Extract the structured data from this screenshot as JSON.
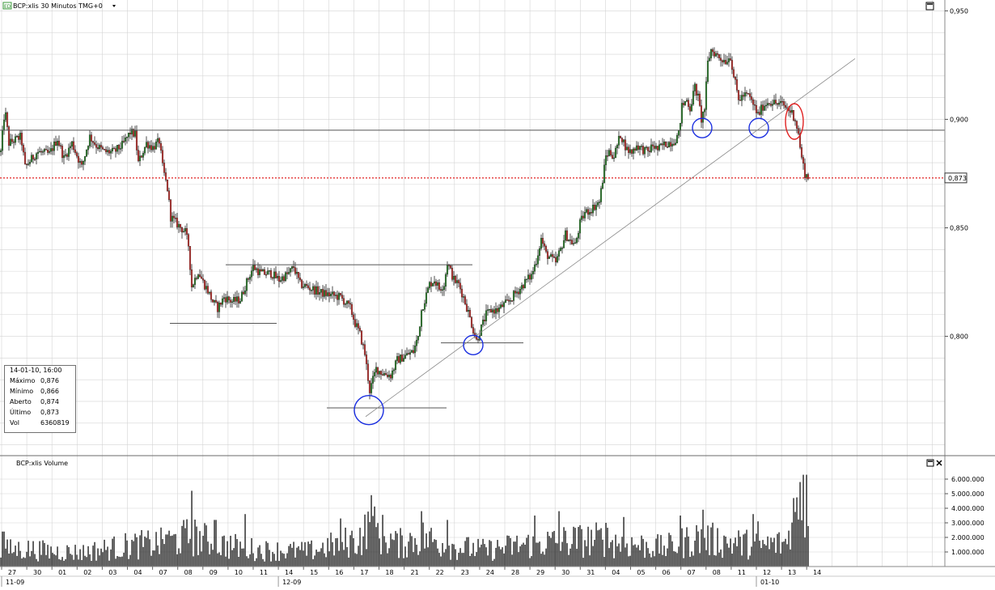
{
  "window": {
    "title": "BCP:xlis 30 Minutos TMG+0",
    "badge": "ED",
    "dropdown_icon": "caret-down-icon",
    "maximize_icon": "maximize-icon",
    "close_icon": "close-icon"
  },
  "info_box": {
    "header": "14-01-10, 16:00",
    "rows": [
      {
        "label": "Máximo",
        "value": "0,876"
      },
      {
        "label": "Mínimo",
        "value": "0,866"
      },
      {
        "label": "Aberto",
        "value": "0,874"
      },
      {
        "label": "Último",
        "value": "0,873"
      },
      {
        "label": "Vol",
        "value": "6360819"
      }
    ]
  },
  "colors": {
    "up": "#2a7f2a",
    "down": "#c0302c",
    "bar_outline": "#222222",
    "grid": "#d4d4d4",
    "last_price": "#e02020",
    "circle_blue": "#1a2ee0",
    "circle_red": "#e02020",
    "annotation": "#555555"
  },
  "chart_data": [
    {
      "type": "candlestick",
      "title": "BCP:xlis 30 Minutos TMG+0",
      "y_ticks": [
        "0,950",
        "0,900",
        "0,850",
        "0,800"
      ],
      "y_tick_values": [
        0.95,
        0.9,
        0.85,
        0.8
      ],
      "ylim": [
        0.745,
        0.955
      ],
      "last_price": 0.873,
      "last_price_label": "0,873",
      "bars_per_day": 17,
      "days": [
        "27",
        "30",
        "01",
        "02",
        "03",
        "04",
        "07",
        "08",
        "09",
        "10",
        "11",
        "14",
        "15",
        "16",
        "17",
        "18",
        "21",
        "22",
        "23",
        "24",
        "28",
        "29",
        "30",
        "31",
        "04",
        "05",
        "06",
        "07",
        "08",
        "11",
        "12",
        "13",
        "14"
      ],
      "month_labels": [
        {
          "label": "11-09",
          "day_index": 0
        },
        {
          "label": "12-09",
          "day_index": 11
        },
        {
          "label": "01-10",
          "day_index": 30
        }
      ],
      "anchors": [
        [
          0,
          0.885
        ],
        [
          5,
          0.905
        ],
        [
          10,
          0.889
        ],
        [
          25,
          0.892
        ],
        [
          30,
          0.878
        ],
        [
          45,
          0.885
        ],
        [
          60,
          0.884
        ],
        [
          70,
          0.891
        ],
        [
          78,
          0.882
        ],
        [
          88,
          0.889
        ],
        [
          100,
          0.878
        ],
        [
          110,
          0.892
        ],
        [
          118,
          0.888
        ],
        [
          128,
          0.885
        ],
        [
          140,
          0.885
        ],
        [
          150,
          0.888
        ],
        [
          160,
          0.894
        ],
        [
          166,
          0.893
        ],
        [
          170,
          0.88
        ],
        [
          180,
          0.889
        ],
        [
          188,
          0.887
        ],
        [
          196,
          0.89
        ],
        [
          200,
          0.878
        ],
        [
          206,
          0.868
        ],
        [
          210,
          0.855
        ],
        [
          220,
          0.851
        ],
        [
          228,
          0.848
        ],
        [
          232,
          0.842
        ],
        [
          236,
          0.823
        ],
        [
          244,
          0.83
        ],
        [
          250,
          0.825
        ],
        [
          256,
          0.821
        ],
        [
          262,
          0.816
        ],
        [
          268,
          0.813
        ],
        [
          276,
          0.818
        ],
        [
          286,
          0.816
        ],
        [
          296,
          0.817
        ],
        [
          304,
          0.825
        ],
        [
          312,
          0.832
        ],
        [
          322,
          0.829
        ],
        [
          334,
          0.829
        ],
        [
          344,
          0.826
        ],
        [
          356,
          0.829
        ],
        [
          362,
          0.832
        ],
        [
          370,
          0.824
        ],
        [
          384,
          0.822
        ],
        [
          396,
          0.82
        ],
        [
          408,
          0.819
        ],
        [
          420,
          0.818
        ],
        [
          432,
          0.813
        ],
        [
          438,
          0.806
        ],
        [
          444,
          0.801
        ],
        [
          450,
          0.792
        ],
        [
          456,
          0.775
        ],
        [
          464,
          0.785
        ],
        [
          472,
          0.783
        ],
        [
          482,
          0.782
        ],
        [
          490,
          0.789
        ],
        [
          500,
          0.791
        ],
        [
          510,
          0.793
        ],
        [
          516,
          0.8
        ],
        [
          520,
          0.812
        ],
        [
          530,
          0.824
        ],
        [
          536,
          0.826
        ],
        [
          542,
          0.822
        ],
        [
          548,
          0.824
        ],
        [
          552,
          0.834
        ],
        [
          556,
          0.83
        ],
        [
          560,
          0.826
        ],
        [
          566,
          0.824
        ],
        [
          572,
          0.818
        ],
        [
          578,
          0.811
        ],
        [
          584,
          0.803
        ],
        [
          588,
          0.798
        ],
        [
          594,
          0.804
        ],
        [
          600,
          0.81
        ],
        [
          606,
          0.812
        ],
        [
          614,
          0.812
        ],
        [
          620,
          0.814
        ],
        [
          628,
          0.816
        ],
        [
          634,
          0.819
        ],
        [
          642,
          0.822
        ],
        [
          650,
          0.826
        ],
        [
          656,
          0.828
        ],
        [
          662,
          0.835
        ],
        [
          668,
          0.845
        ],
        [
          674,
          0.838
        ],
        [
          680,
          0.836
        ],
        [
          686,
          0.834
        ],
        [
          692,
          0.84
        ],
        [
          698,
          0.847
        ],
        [
          704,
          0.844
        ],
        [
          710,
          0.842
        ],
        [
          716,
          0.852
        ],
        [
          722,
          0.857
        ],
        [
          728,
          0.858
        ],
        [
          734,
          0.86
        ],
        [
          740,
          0.862
        ],
        [
          744,
          0.872
        ],
        [
          748,
          0.883
        ],
        [
          752,
          0.885
        ],
        [
          758,
          0.883
        ],
        [
          766,
          0.893
        ],
        [
          774,
          0.886
        ],
        [
          780,
          0.885
        ],
        [
          786,
          0.888
        ],
        [
          794,
          0.886
        ],
        [
          800,
          0.885
        ],
        [
          806,
          0.888
        ],
        [
          812,
          0.886
        ],
        [
          818,
          0.888
        ],
        [
          824,
          0.889
        ],
        [
          832,
          0.89
        ],
        [
          838,
          0.893
        ],
        [
          842,
          0.906
        ],
        [
          848,
          0.909
        ],
        [
          852,
          0.905
        ],
        [
          858,
          0.915
        ],
        [
          862,
          0.91
        ],
        [
          866,
          0.9
        ],
        [
          870,
          0.905
        ],
        [
          874,
          0.926
        ],
        [
          878,
          0.932
        ],
        [
          884,
          0.93
        ],
        [
          890,
          0.928
        ],
        [
          896,
          0.927
        ],
        [
          902,
          0.929
        ],
        [
          906,
          0.92
        ],
        [
          912,
          0.909
        ],
        [
          918,
          0.911
        ],
        [
          924,
          0.911
        ],
        [
          930,
          0.907
        ],
        [
          936,
          0.902
        ],
        [
          942,
          0.906
        ],
        [
          948,
          0.908
        ],
        [
          954,
          0.908
        ],
        [
          960,
          0.907
        ],
        [
          966,
          0.907
        ],
        [
          972,
          0.905
        ],
        [
          978,
          0.903
        ],
        [
          982,
          0.9
        ],
        [
          986,
          0.893
        ],
        [
          990,
          0.882
        ],
        [
          994,
          0.875
        ],
        [
          998,
          0.873
        ]
      ],
      "volume_anchors": [
        [
          0,
          1.4
        ],
        [
          30,
          1.5
        ],
        [
          60,
          1.3
        ],
        [
          100,
          1.2
        ],
        [
          160,
          1.8
        ],
        [
          200,
          2.0
        ],
        [
          236,
          2.6
        ],
        [
          270,
          1.9
        ],
        [
          320,
          1.4
        ],
        [
          380,
          1.3
        ],
        [
          440,
          2.3
        ],
        [
          458,
          3.4
        ],
        [
          490,
          1.9
        ],
        [
          520,
          2.5
        ],
        [
          560,
          1.7
        ],
        [
          600,
          1.4
        ],
        [
          640,
          1.8
        ],
        [
          700,
          2.2
        ],
        [
          740,
          2.3
        ],
        [
          780,
          1.9
        ],
        [
          820,
          1.6
        ],
        [
          860,
          2.4
        ],
        [
          900,
          2.1
        ],
        [
          940,
          1.8
        ],
        [
          970,
          2.0
        ],
        [
          985,
          4.5
        ],
        [
          998,
          6.2
        ]
      ],
      "volume_spikes": [
        [
          3,
          2.4
        ],
        [
          205,
          2.2
        ],
        [
          236,
          5.2
        ],
        [
          265,
          3.2
        ],
        [
          302,
          3.6
        ],
        [
          420,
          3.3
        ],
        [
          458,
          4.9
        ],
        [
          520,
          3.8
        ],
        [
          552,
          3.2
        ],
        [
          660,
          3.5
        ],
        [
          690,
          3.8
        ],
        [
          748,
          3.0
        ],
        [
          770,
          3.4
        ],
        [
          840,
          3.5
        ],
        [
          868,
          3.9
        ],
        [
          930,
          3.6
        ],
        [
          936,
          3.1
        ],
        [
          980,
          4.7
        ],
        [
          988,
          5.8
        ],
        [
          992,
          6.3
        ],
        [
          996,
          6.3
        ]
      ],
      "annotations": {
        "horizontal_lines": [
          {
            "x_from": 279,
            "x_to": 584,
            "y": 0.833
          },
          {
            "x_from": 210,
            "x_to": 342,
            "y": 0.806
          },
          {
            "x_from": 404,
            "x_to": 552,
            "y": 0.767
          },
          {
            "x_from": 545,
            "x_to": 647,
            "y": 0.797
          },
          {
            "x_from": 0,
            "x_to": 1168,
            "y": 0.895
          }
        ],
        "trendline": {
          "x_from": 452,
          "y_from": 0.763,
          "x_to": 1057,
          "y_to": 0.928
        },
        "circles": [
          {
            "x": 456,
            "y": 0.766,
            "r": 18,
            "color": "blue"
          },
          {
            "x": 585,
            "y": 0.796,
            "r": 12,
            "color": "blue"
          },
          {
            "x": 868,
            "y": 0.896,
            "r": 12,
            "color": "blue"
          },
          {
            "x": 938,
            "y": 0.896,
            "r": 12,
            "color": "blue"
          }
        ],
        "ellipses": [
          {
            "x": 982,
            "y": 0.899,
            "rx": 11,
            "ry": 22,
            "color": "red"
          }
        ]
      }
    },
    {
      "type": "bar",
      "title": "BCP:xlis Volume",
      "y_ticks": [
        "6.000.000",
        "5.000.000",
        "4.000.000",
        "3.000.000",
        "2.000.000",
        "1.000.000"
      ],
      "y_tick_values": [
        6000000,
        5000000,
        4000000,
        3000000,
        2000000,
        1000000
      ],
      "ylim": [
        0,
        6500000
      ]
    }
  ]
}
